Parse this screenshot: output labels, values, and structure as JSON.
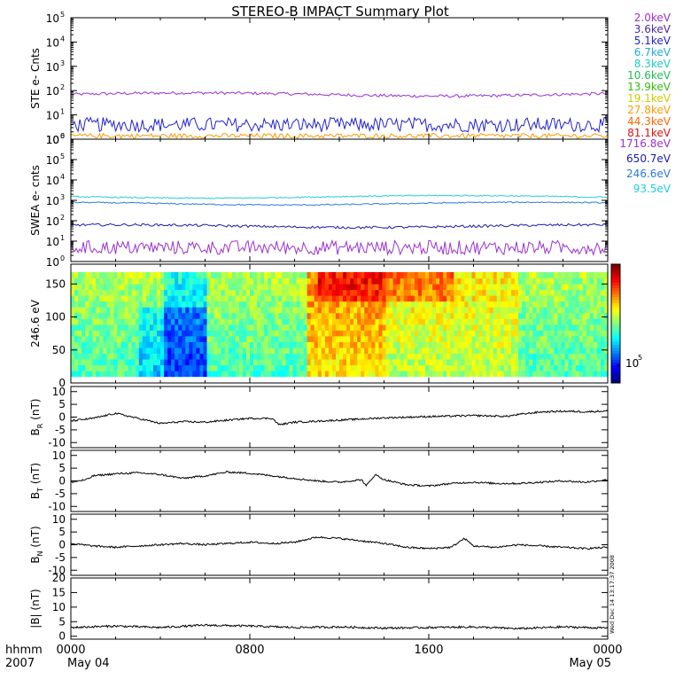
{
  "title": "STEREO-B IMPACT Summary Plot",
  "footer": {
    "row1": "hhmm",
    "row2": "2007",
    "ticks": [
      {
        "hour": 0,
        "time": "0000",
        "date": "May 04"
      },
      {
        "hour": 8,
        "time": "0800",
        "date": ""
      },
      {
        "hour": 16,
        "time": "1600",
        "date": ""
      },
      {
        "hour": 24,
        "time": "0000",
        "date": "May 05"
      }
    ]
  },
  "timestamp": "Wed Dec 14 13:17:37 2008",
  "chart_data": [
    {
      "type": "line",
      "panel": "ste",
      "ylabel": "STE e- Cnts",
      "yscale": "log",
      "ylim": [
        1,
        100000
      ],
      "yticks": [
        {
          "v": 1,
          "m": "10",
          "e": "0"
        },
        {
          "v": 10,
          "m": "10",
          "e": "1"
        },
        {
          "v": 100,
          "m": "10",
          "e": "2"
        },
        {
          "v": 1000,
          "m": "10",
          "e": "3"
        },
        {
          "v": 10000,
          "m": "10",
          "e": "4"
        },
        {
          "v": 100000,
          "m": "10",
          "e": "5"
        }
      ],
      "x_range_hours": [
        0,
        24
      ],
      "series": [
        {
          "name": "2.0keV",
          "color": "#9b30d0",
          "level": 70,
          "noise": 0.06
        },
        {
          "name": "3.6keV",
          "color": "#4b2aa0",
          "level": 0,
          "noise": 0
        },
        {
          "name": "5.1keV",
          "color": "#2222cc",
          "level": 3.0,
          "noise": 0.3
        },
        {
          "name": "6.7keV",
          "color": "#22aadd",
          "level": 0,
          "noise": 0
        },
        {
          "name": "8.3keV",
          "color": "#22ccbb",
          "level": 0,
          "noise": 0
        },
        {
          "name": "10.6keV",
          "color": "#22bb55",
          "level": 0,
          "noise": 0
        },
        {
          "name": "13.9keV",
          "color": "#33bb11",
          "level": 0,
          "noise": 0
        },
        {
          "name": "19.1keV",
          "color": "#cccc00",
          "level": 0,
          "noise": 0
        },
        {
          "name": "27.8keV",
          "color": "#ff9900",
          "level": 1.25,
          "noise": 0.1
        },
        {
          "name": "44.3keV",
          "color": "#ff6600",
          "level": 0,
          "noise": 0
        },
        {
          "name": "81.1keV",
          "color": "#dd1111",
          "level": 0,
          "noise": 0
        }
      ]
    },
    {
      "type": "line",
      "panel": "swea",
      "ylabel": "SWEA e- cnts",
      "yscale": "log",
      "ylim": [
        1,
        1000000
      ],
      "yticks": [
        {
          "v": 1,
          "m": "10",
          "e": "0"
        },
        {
          "v": 10,
          "m": "10",
          "e": "1"
        },
        {
          "v": 100,
          "m": "10",
          "e": "2"
        },
        {
          "v": 1000,
          "m": "10",
          "e": "3"
        },
        {
          "v": 10000,
          "m": "10",
          "e": "4"
        },
        {
          "v": 100000,
          "m": "10",
          "e": "5"
        },
        {
          "v": 1000000,
          "m": "10",
          "e": "6"
        }
      ],
      "x_range_hours": [
        0,
        24
      ],
      "series": [
        {
          "name": "1716.8eV",
          "color": "#9b30d0",
          "level": 3.5,
          "noise": 0.35
        },
        {
          "name": "650.7eV",
          "color": "#1a1aaa",
          "level": 55,
          "noise": 0.06
        },
        {
          "name": "246.6eV",
          "color": "#2a7ae0",
          "level": 700,
          "noise": 0.03
        },
        {
          "name": "93.5eV",
          "color": "#22ccdd",
          "level": 1500,
          "noise": 0.03
        }
      ]
    },
    {
      "type": "heatmap",
      "panel": "pad",
      "ylabel": "246.6 eV",
      "ylim": [
        0,
        180
      ],
      "yticks": [
        0,
        50,
        100,
        150
      ],
      "colorbar_label": "10",
      "colorbar_exp": "5",
      "x_range_hours": [
        0,
        24
      ]
    },
    {
      "type": "line",
      "panel": "br",
      "ylabel": "B",
      "ysub": "R",
      "yunit": "(nT)",
      "ylim": [
        -12,
        12
      ],
      "yticks": [
        -10,
        -5,
        0,
        5,
        10
      ],
      "ytick_labels": [
        "-10",
        "-5",
        "0",
        "5",
        "10"
      ],
      "series": [
        {
          "name": "BR",
          "color": "#000000",
          "x": [
            0,
            1,
            1.5,
            2,
            3,
            3.5,
            4,
            5,
            6,
            7,
            8,
            9,
            9.3,
            10,
            12,
            14,
            16,
            18,
            19.5,
            20,
            21,
            22,
            23,
            24
          ],
          "y": [
            -1.5,
            -0.5,
            0.5,
            1.5,
            -0.5,
            -1.5,
            -2.5,
            -1.8,
            -2.0,
            -1.2,
            -0.5,
            -0.5,
            -3.0,
            -2.0,
            -1.2,
            -0.3,
            0.2,
            0.6,
            0.3,
            1.0,
            2.0,
            2.3,
            2.1,
            2.4
          ]
        }
      ]
    },
    {
      "type": "line",
      "panel": "bt",
      "ylabel": "B",
      "ysub": "T",
      "yunit": "(nT)",
      "ylim": [
        -12,
        12
      ],
      "yticks": [
        -10,
        -5,
        0,
        5,
        10
      ],
      "ytick_labels": [
        "-10",
        "-5",
        "0",
        "5",
        "10"
      ],
      "series": [
        {
          "name": "BT",
          "color": "#000000",
          "x": [
            0,
            0.7,
            1,
            2,
            3,
            4,
            5,
            6,
            7,
            8,
            9,
            10,
            11,
            12,
            13,
            13.2,
            13.6,
            14,
            15,
            16,
            17,
            18,
            19,
            20,
            21,
            22,
            23,
            24
          ],
          "y": [
            -0.5,
            0.5,
            2.0,
            2.8,
            3.2,
            2.5,
            1.0,
            2.0,
            3.5,
            3.0,
            2.0,
            1.0,
            0.0,
            -0.5,
            0.5,
            -2.0,
            2.5,
            0.5,
            -1.5,
            -2.0,
            -1.0,
            -0.5,
            -1.0,
            -1.0,
            -0.5,
            0.0,
            -0.5,
            0.5
          ]
        }
      ]
    },
    {
      "type": "line",
      "panel": "bn",
      "ylabel": "B",
      "ysub": "N",
      "yunit": "(nT)",
      "ylim": [
        -12,
        12
      ],
      "yticks": [
        -10,
        -5,
        0,
        5,
        10
      ],
      "ytick_labels": [
        "-10",
        "-5",
        "0",
        "5",
        "10"
      ],
      "series": [
        {
          "name": "BN",
          "color": "#000000",
          "x": [
            0,
            1,
            2,
            3,
            4,
            5,
            6,
            7,
            8,
            9,
            10,
            11,
            12,
            13,
            14,
            15,
            16,
            17,
            17.6,
            18,
            19,
            20,
            21,
            22,
            23,
            24
          ],
          "y": [
            0.5,
            -0.5,
            -1.0,
            -0.5,
            0.0,
            0.5,
            0.0,
            0.5,
            1.0,
            0.5,
            1.0,
            3.0,
            2.5,
            1.5,
            0.5,
            -1.0,
            -1.5,
            -1.0,
            2.5,
            -0.5,
            -1.0,
            0.0,
            -0.5,
            -1.0,
            -1.5,
            -1.0
          ]
        }
      ]
    },
    {
      "type": "line",
      "panel": "bmag",
      "ylabel": "|B|",
      "ysub": "",
      "yunit": "(nT)",
      "ylim": [
        -1,
        20
      ],
      "yticks": [
        0,
        5,
        10,
        15,
        20
      ],
      "ytick_labels": [
        "0",
        "5",
        "10",
        "15",
        "20"
      ],
      "series": [
        {
          "name": "|B|",
          "color": "#000000",
          "x": [
            0,
            2,
            4,
            6,
            8,
            10,
            12,
            14,
            16,
            18,
            20,
            22,
            24
          ],
          "y": [
            3.0,
            3.5,
            3.0,
            3.8,
            3.5,
            3.0,
            3.2,
            2.8,
            3.0,
            3.2,
            2.6,
            3.2,
            2.8
          ]
        }
      ]
    }
  ]
}
